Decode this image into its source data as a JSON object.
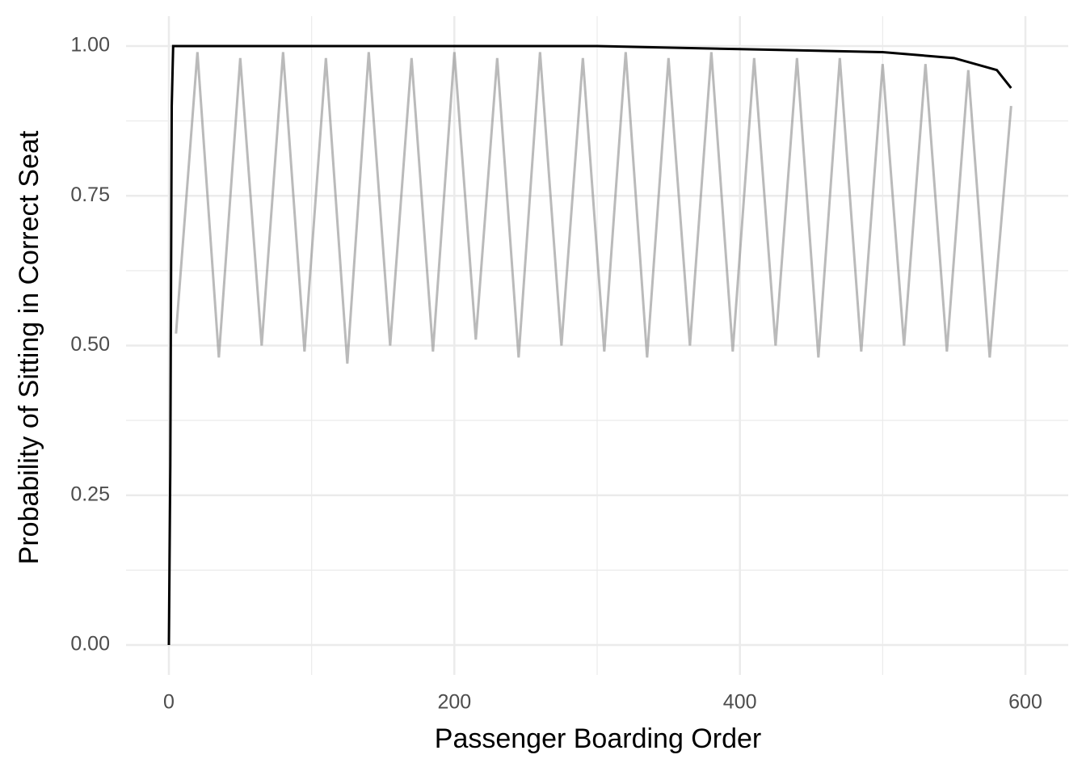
{
  "chart_data": {
    "type": "line",
    "x_label": "Passenger Boarding Order",
    "y_label": "Probability of Sitting in Correct Seat",
    "xlim": [
      -30,
      630
    ],
    "ylim": [
      -0.05,
      1.05
    ],
    "xticks": [
      0,
      200,
      400,
      600
    ],
    "yticks": [
      {
        "value": 0,
        "label": "0.00"
      },
      {
        "value": 0.25,
        "label": "0.25"
      },
      {
        "value": 0.5,
        "label": "0.50"
      },
      {
        "value": 0.75,
        "label": "0.75"
      },
      {
        "value": 1,
        "label": "1.00"
      }
    ],
    "x_minor_grid": [
      100,
      300,
      500
    ],
    "y_minor_grid": [
      0.125,
      0.375,
      0.625,
      0.875
    ],
    "grid": true,
    "series": [
      {
        "color": "#8c8c8c",
        "opacity": 0.6,
        "x": [
          5,
          20,
          35,
          50,
          65,
          80,
          95,
          110,
          125,
          140,
          155,
          170,
          185,
          200,
          215,
          230,
          245,
          260,
          275,
          290,
          305,
          320,
          335,
          350,
          365,
          380,
          395,
          410,
          425,
          440,
          455,
          470,
          485,
          500,
          515,
          530,
          545,
          560,
          575,
          590
        ],
        "values": [
          0.52,
          0.99,
          0.48,
          0.98,
          0.5,
          0.99,
          0.49,
          0.98,
          0.47,
          0.99,
          0.5,
          0.98,
          0.49,
          0.99,
          0.51,
          0.98,
          0.48,
          0.99,
          0.5,
          0.98,
          0.49,
          0.99,
          0.48,
          0.98,
          0.5,
          0.99,
          0.49,
          0.98,
          0.5,
          0.98,
          0.48,
          0.98,
          0.49,
          0.97,
          0.5,
          0.97,
          0.49,
          0.96,
          0.48,
          0.9
        ]
      },
      {
        "color": "#000000",
        "opacity": 1,
        "x": [
          0,
          1,
          2,
          3,
          100,
          200,
          300,
          400,
          500,
          550,
          580,
          590
        ],
        "values": [
          0,
          0.3,
          0.9,
          1.0,
          1.0,
          1.0,
          1.0,
          0.995,
          0.99,
          0.98,
          0.96,
          0.93
        ]
      }
    ]
  }
}
